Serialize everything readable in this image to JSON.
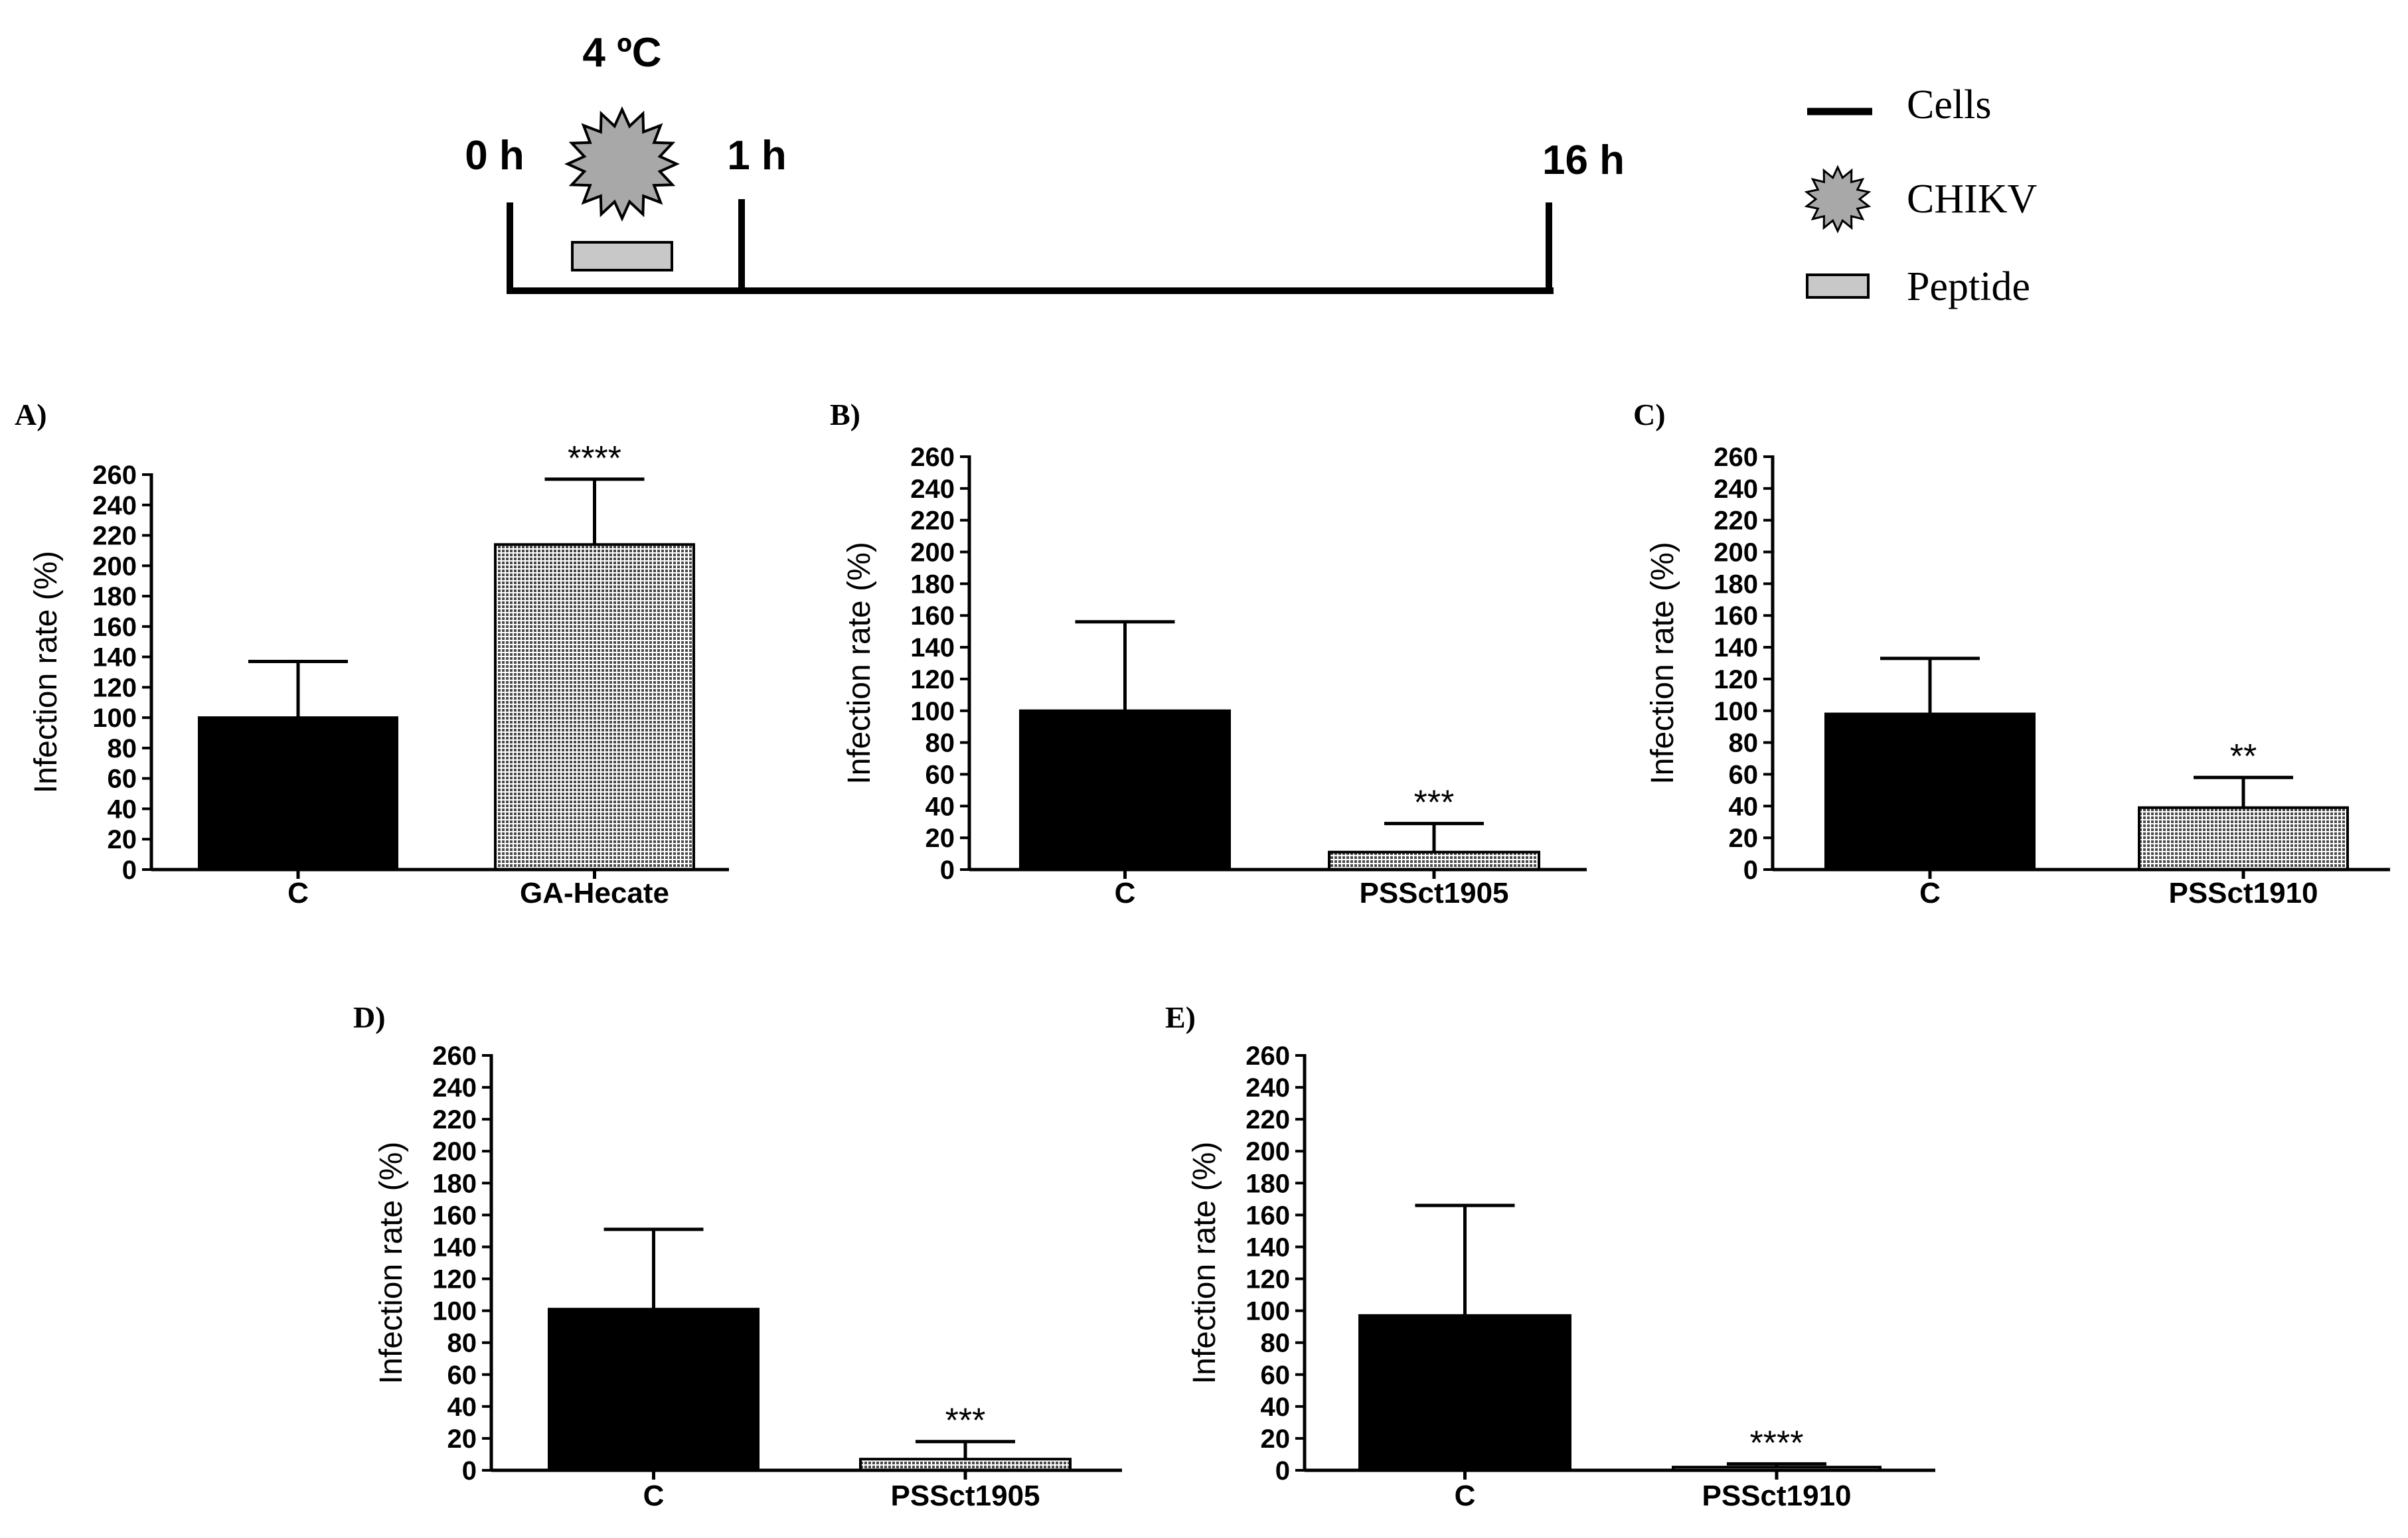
{
  "timeline": {
    "temperature": "4 ºC",
    "t0": "0 h",
    "t1": "1 h",
    "t16": "16 h"
  },
  "legend": {
    "items": [
      {
        "icon": "line-icon",
        "label": "Cells"
      },
      {
        "icon": "starburst-icon",
        "label": "CHIKV"
      },
      {
        "icon": "rectangle-icon",
        "label": "Peptide"
      }
    ]
  },
  "colors": {
    "axis": "#000000",
    "control_bar": "#000000",
    "peptide_bar": "#c8c8c8",
    "virus": "#a8a8a8"
  },
  "chart_data": [
    {
      "panel": "A)",
      "type": "bar",
      "ylabel": "Infection rate (%)",
      "ylim": [
        0,
        260
      ],
      "yticks": [
        0,
        20,
        40,
        60,
        80,
        100,
        120,
        140,
        160,
        180,
        200,
        220,
        240,
        260
      ],
      "categories": [
        "C",
        "GA-Hecate"
      ],
      "values": [
        100,
        214
      ],
      "errors": [
        37,
        43
      ],
      "significance": [
        "",
        "****"
      ]
    },
    {
      "panel": "B)",
      "type": "bar",
      "ylabel": "Infection rate (%)",
      "ylim": [
        0,
        260
      ],
      "yticks": [
        0,
        20,
        40,
        60,
        80,
        100,
        120,
        140,
        160,
        180,
        200,
        220,
        240,
        260
      ],
      "categories": [
        "C",
        "PSSct1905"
      ],
      "values": [
        100,
        11
      ],
      "errors": [
        56,
        18
      ],
      "significance": [
        "",
        "***"
      ]
    },
    {
      "panel": "C)",
      "type": "bar",
      "ylabel": "Infection rate (%)",
      "ylim": [
        0,
        260
      ],
      "yticks": [
        0,
        20,
        40,
        60,
        80,
        100,
        120,
        140,
        160,
        180,
        200,
        220,
        240,
        260
      ],
      "categories": [
        "C",
        "PSSct1910"
      ],
      "values": [
        98,
        39
      ],
      "errors": [
        35,
        19
      ],
      "significance": [
        "",
        "**"
      ]
    },
    {
      "panel": "D)",
      "type": "bar",
      "ylabel": "Infection rate (%)",
      "ylim": [
        0,
        260
      ],
      "yticks": [
        0,
        20,
        40,
        60,
        80,
        100,
        120,
        140,
        160,
        180,
        200,
        220,
        240,
        260
      ],
      "categories": [
        "C",
        "PSSct1905"
      ],
      "values": [
        101,
        7
      ],
      "errors": [
        50,
        11
      ],
      "significance": [
        "",
        "***"
      ]
    },
    {
      "panel": "E)",
      "type": "bar",
      "ylabel": "Infection rate (%)",
      "ylim": [
        0,
        260
      ],
      "yticks": [
        0,
        20,
        40,
        60,
        80,
        100,
        120,
        140,
        160,
        180,
        200,
        220,
        240,
        260
      ],
      "categories": [
        "C",
        "PSSct1910"
      ],
      "values": [
        97,
        2
      ],
      "errors": [
        69,
        2
      ],
      "significance": [
        "",
        "****"
      ]
    }
  ]
}
